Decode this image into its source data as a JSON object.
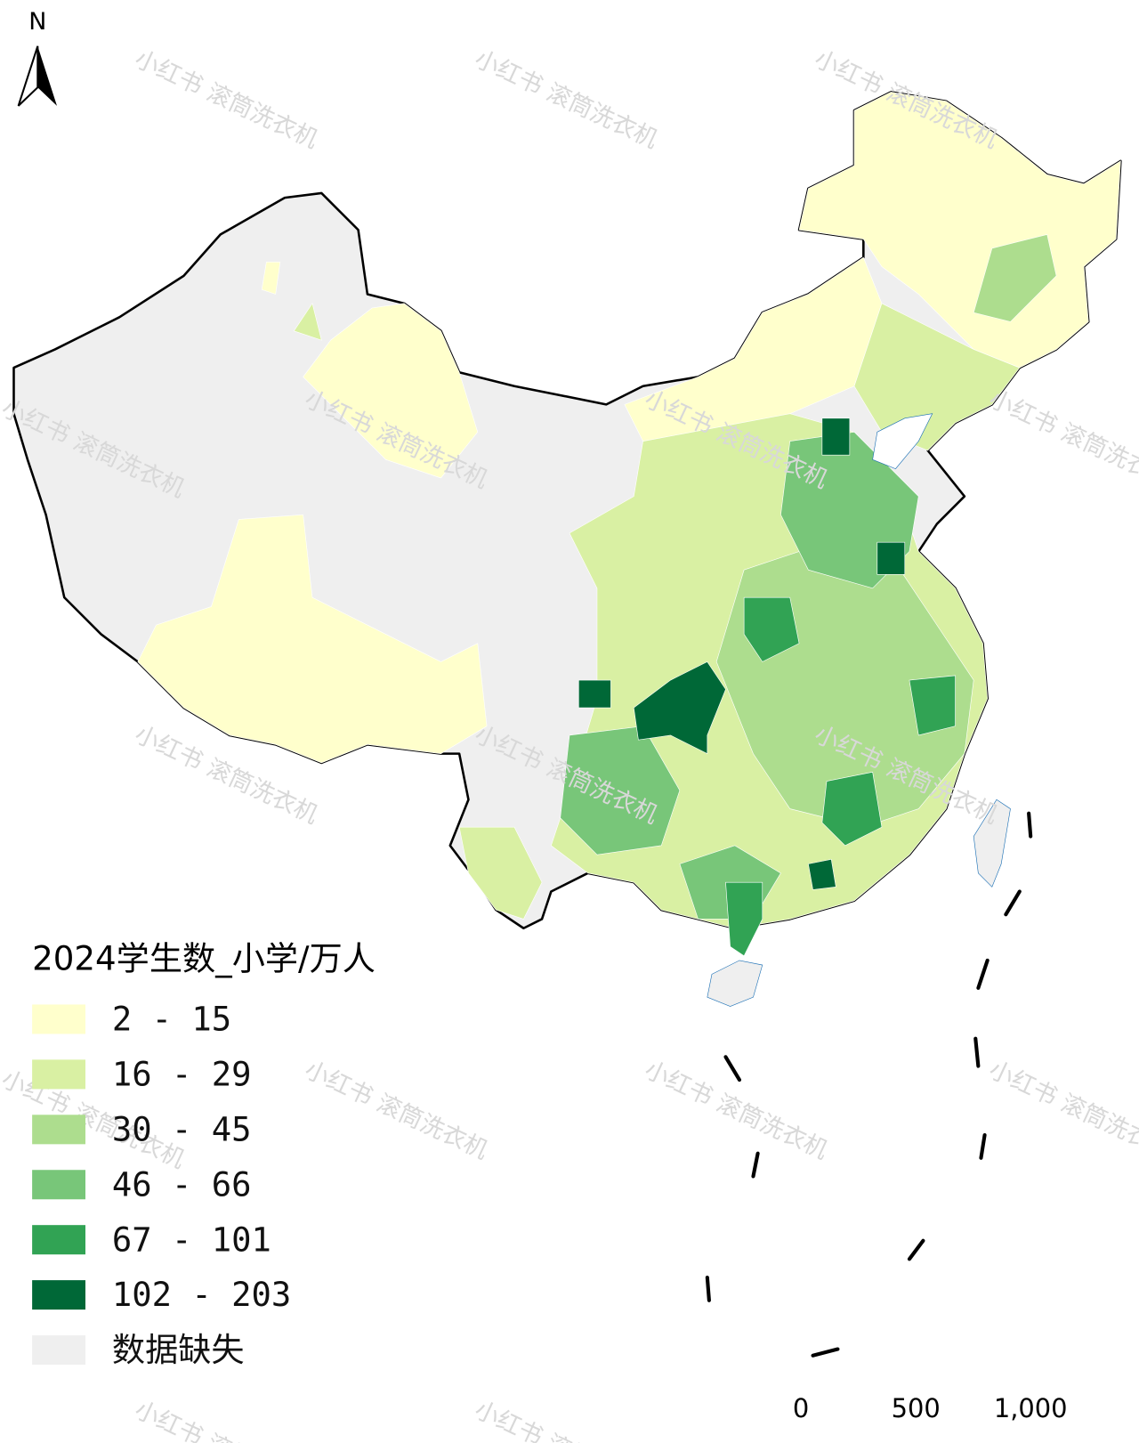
{
  "north": "N",
  "watermark": "小红书 滚筒洗衣机",
  "legend": {
    "title": "2024学生数_小学/万人",
    "items": [
      {
        "label": "2 - 15",
        "color": "#ffffcc"
      },
      {
        "label": "16 - 29",
        "color": "#d9f0a3"
      },
      {
        "label": "30 - 45",
        "color": "#addd8e"
      },
      {
        "label": "46 - 66",
        "color": "#78c679"
      },
      {
        "label": "67 - 101",
        "color": "#31a354"
      },
      {
        "label": "102 - 203",
        "color": "#006837"
      },
      {
        "label": "数据缺失",
        "color": "#efefef"
      }
    ]
  },
  "scale_bar": {
    "labels": [
      "0",
      "500",
      "1,000"
    ]
  }
}
